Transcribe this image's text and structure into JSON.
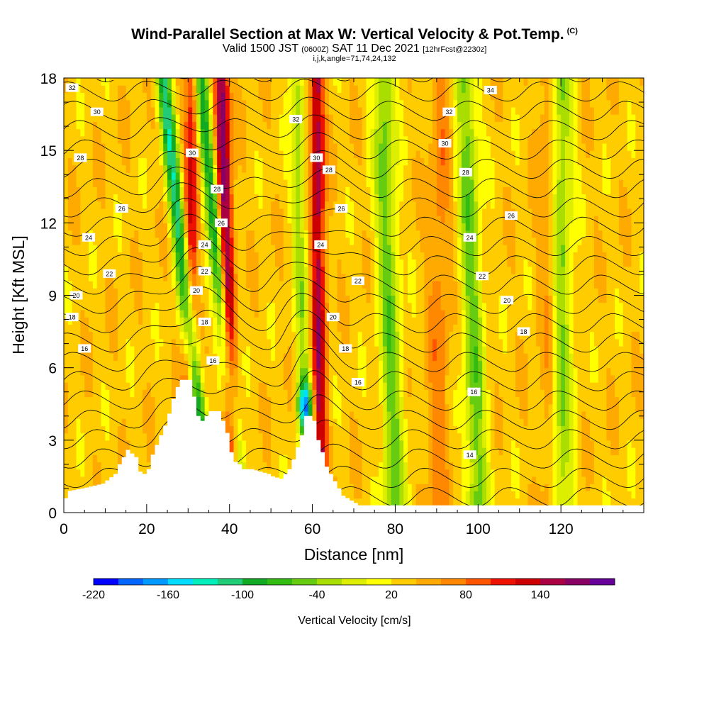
{
  "header": {
    "title": "Wind-Parallel Section at Max W: Vertical Velocity & Pot.Temp.",
    "title_mark": "(C)",
    "valid_prefix": "Valid 1500 JST",
    "valid_utc": "(0600Z)",
    "valid_date": "SAT 11 Dec 2021",
    "forecast": "[12hrFcst@2230z]",
    "indices": "i,j,k,angle=71,74,24,132"
  },
  "chart_data": {
    "type": "heatmap",
    "xlabel": "Distance [nm]",
    "ylabel": "Height [Kft MSL]",
    "xlim": [
      0,
      140
    ],
    "ylim": [
      0,
      18
    ],
    "x_ticks": [
      "0",
      "20",
      "40",
      "60",
      "80",
      "100",
      "120"
    ],
    "y_ticks": [
      "0",
      "3",
      "6",
      "9",
      "12",
      "15",
      "18"
    ],
    "colorbar": {
      "label": "Vertical Velocity [cm/s]",
      "tick_labels": [
        "-220",
        "-160",
        "-100",
        "-40",
        "20",
        "80",
        "140"
      ],
      "colors": [
        "#0000ff",
        "#0066ff",
        "#0099ff",
        "#00ddff",
        "#00eebb",
        "#22cc77",
        "#11aa22",
        "#33bb11",
        "#66cc11",
        "#aadd00",
        "#ddee00",
        "#ffff00",
        "#ffcc00",
        "#ffaa00",
        "#ff8800",
        "#ff5500",
        "#ee1100",
        "#cc0000",
        "#aa0044",
        "#880066",
        "#660099"
      ]
    },
    "updraft_bands": [
      {
        "x_bottom": 30,
        "x_top": 31,
        "peak_cm_s": 110
      },
      {
        "x_bottom": 41,
        "x_top": 38,
        "peak_cm_s": 170
      },
      {
        "x_bottom": 62,
        "x_top": 61,
        "peak_cm_s": 140
      },
      {
        "x_bottom": 90,
        "x_top": 91,
        "peak_cm_s": 60
      },
      {
        "x_bottom": 118,
        "x_top": 117,
        "peak_cm_s": 60
      }
    ],
    "downdraft_bands": [
      {
        "x_bottom": 35,
        "x_top": 24,
        "peak_cm_s": -120
      },
      {
        "x_bottom": 43,
        "x_top": 33,
        "peak_cm_s": -110
      },
      {
        "x_bottom": 59,
        "x_top": 56,
        "peak_cm_s": -200
      },
      {
        "x_bottom": 80,
        "x_top": 77,
        "peak_cm_s": -60
      },
      {
        "x_bottom": 100,
        "x_top": 97,
        "peak_cm_s": -60
      },
      {
        "x_bottom": 120,
        "x_top": 120,
        "peak_cm_s": -60
      }
    ],
    "terrain": {
      "x": [
        0,
        1,
        4,
        9,
        12,
        13,
        14,
        15,
        17,
        18,
        19,
        20,
        21,
        22,
        23,
        24,
        25,
        26,
        27,
        28,
        29,
        30,
        31,
        32,
        33,
        34,
        35,
        36,
        37,
        38,
        39,
        40,
        41,
        42,
        43,
        45,
        47,
        49,
        50,
        52,
        54,
        55,
        56,
        57,
        58,
        59,
        60,
        61,
        62,
        63,
        64,
        65,
        66,
        67,
        68,
        69,
        70,
        71,
        72,
        75,
        140
      ],
      "height_kft": [
        0.6,
        0.9,
        1.0,
        1.2,
        1.6,
        2.0,
        2.3,
        2.6,
        2.3,
        1.7,
        1.6,
        1.8,
        2.4,
        2.8,
        3.2,
        3.6,
        4.1,
        4.7,
        5.2,
        5.5,
        5.5,
        5.5,
        4.8,
        4.0,
        3.8,
        4.0,
        4.2,
        4.2,
        4.2,
        3.8,
        3.3,
        2.5,
        2.1,
        2.0,
        1.8,
        1.8,
        1.7,
        1.6,
        1.5,
        1.4,
        1.8,
        2.2,
        2.7,
        3.2,
        4.0,
        4.0,
        3.8,
        3.0,
        2.5,
        1.9,
        1.6,
        1.3,
        1.0,
        0.7,
        0.6,
        0.5,
        0.4,
        0.3,
        0.3,
        0.3,
        0.3
      ]
    },
    "theta_contours_c": [
      {
        "value": 14,
        "label": "14",
        "label_at": [
          [
            98,
            2.4
          ]
        ]
      },
      {
        "value": 16,
        "label": "16",
        "label_at": [
          [
            5,
            6.8
          ],
          [
            36,
            6.3
          ],
          [
            71,
            5.4
          ],
          [
            99,
            5.0
          ]
        ]
      },
      {
        "value": 18,
        "label": "18",
        "label_at": [
          [
            2,
            8.1
          ],
          [
            34,
            7.9
          ],
          [
            68,
            6.8
          ],
          [
            111,
            7.5
          ]
        ]
      },
      {
        "value": 20,
        "label": "20",
        "label_at": [
          [
            3,
            9.0
          ],
          [
            32,
            9.2
          ],
          [
            65,
            8.1
          ],
          [
            107,
            8.8
          ]
        ]
      },
      {
        "value": 22,
        "label": "22",
        "label_at": [
          [
            11,
            9.9
          ],
          [
            34,
            10.0
          ],
          [
            71,
            9.6
          ],
          [
            101,
            9.8
          ]
        ]
      },
      {
        "value": 24,
        "label": "24",
        "label_at": [
          [
            6,
            11.4
          ],
          [
            34,
            11.1
          ],
          [
            62,
            11.1
          ],
          [
            98,
            11.4
          ]
        ]
      },
      {
        "value": 26,
        "label": "26",
        "label_at": [
          [
            14,
            12.6
          ],
          [
            38,
            12.0
          ],
          [
            67,
            12.6
          ],
          [
            108,
            12.3
          ]
        ]
      },
      {
        "value": 28,
        "label": "28",
        "label_at": [
          [
            4,
            14.7
          ],
          [
            37,
            13.4
          ],
          [
            64,
            14.2
          ],
          [
            97,
            14.1
          ]
        ]
      },
      {
        "value": 30,
        "label": "30",
        "label_at": [
          [
            8,
            16.6
          ],
          [
            31,
            14.9
          ],
          [
            61,
            14.7
          ],
          [
            92,
            15.3
          ]
        ]
      },
      {
        "value": 32,
        "label": "32",
        "label_at": [
          [
            2,
            17.6
          ],
          [
            56,
            16.3
          ],
          [
            93,
            16.6
          ]
        ]
      },
      {
        "value": 34,
        "label": "34",
        "label_at": [
          [
            103,
            17.5
          ]
        ]
      }
    ]
  }
}
